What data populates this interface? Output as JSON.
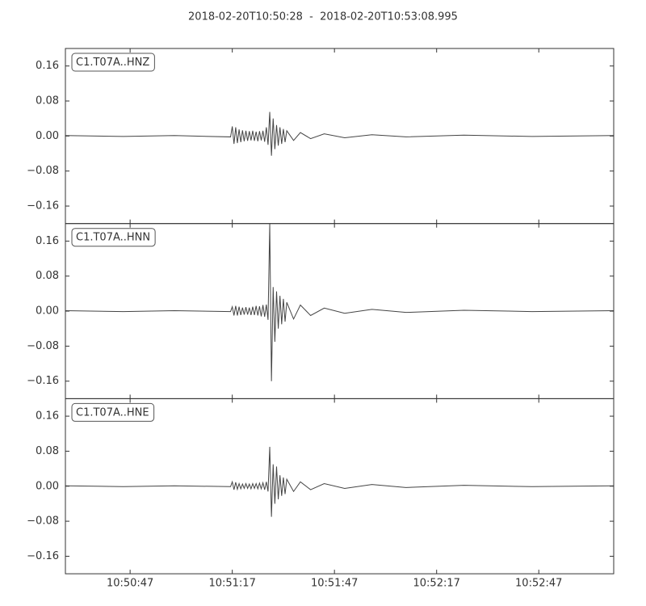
{
  "title": "2018-02-20T10:50:28  -  2018-02-20T10:53:08.995",
  "chart_data": [
    {
      "type": "line",
      "label": "C1.T07A..HNZ",
      "color": "#444444",
      "xlim": [
        "10:50:28",
        "10:53:08.995"
      ],
      "xticks": [
        {
          "value": "10:50:47",
          "label": "10:50:47"
        },
        {
          "value": "10:51:17",
          "label": "10:51:17"
        },
        {
          "value": "10:51:47",
          "label": "10:51:47"
        },
        {
          "value": "10:52:17",
          "label": "10:52:17"
        },
        {
          "value": "10:52:47",
          "label": "10:52:47"
        }
      ],
      "ylim": [
        -0.2,
        0.2
      ],
      "yticks": [
        {
          "value": 0.16,
          "label": "0.16"
        },
        {
          "value": 0.08,
          "label": "0.08"
        },
        {
          "value": 0,
          "label": "0.00"
        },
        {
          "value": -0.08,
          "label": "−0.08"
        },
        {
          "value": -0.16,
          "label": "−0.16"
        }
      ],
      "x": [
        "10:50:28",
        "10:50:45",
        "10:51:00",
        "10:51:16.5",
        "10:51:17",
        "10:51:17.5",
        "10:51:18",
        "10:51:18.5",
        "10:51:19",
        "10:51:19.5",
        "10:51:20",
        "10:51:20.5",
        "10:51:21",
        "10:51:21.5",
        "10:51:22",
        "10:51:22.5",
        "10:51:23",
        "10:51:23.5",
        "10:51:24",
        "10:51:24.5",
        "10:51:25",
        "10:51:25.5",
        "10:51:26",
        "10:51:26.5",
        "10:51:27",
        "10:51:27.5",
        "10:51:28",
        "10:51:28.5",
        "10:51:29",
        "10:51:29.5",
        "10:51:30",
        "10:51:30.5",
        "10:51:31",
        "10:51:31.5",
        "10:51:32",
        "10:51:32.5",
        "10:51:33",
        "10:51:35",
        "10:51:37",
        "10:51:40",
        "10:51:44",
        "10:51:50",
        "10:51:58",
        "10:52:08",
        "10:52:25",
        "10:52:45",
        "10:53:08.995"
      ],
      "values": [
        0.001,
        -0.001,
        0.001,
        -0.002,
        0.022,
        -0.018,
        0.02,
        -0.016,
        0.015,
        -0.014,
        0.013,
        -0.012,
        0.012,
        -0.011,
        0.011,
        -0.01,
        0.012,
        -0.011,
        0.01,
        -0.012,
        0.011,
        -0.01,
        0.012,
        -0.013,
        0.02,
        -0.02,
        0.055,
        -0.045,
        0.04,
        -0.03,
        0.025,
        -0.022,
        0.02,
        -0.018,
        0.016,
        -0.014,
        0.012,
        -0.01,
        0.008,
        -0.006,
        0.005,
        -0.004,
        0.003,
        -0.002,
        0.002,
        -0.001,
        0.001
      ]
    },
    {
      "type": "line",
      "label": "C1.T07A..HNN",
      "color": "#444444",
      "xlim": [
        "10:50:28",
        "10:53:08.995"
      ],
      "xticks": [
        {
          "value": "10:50:47",
          "label": "10:50:47"
        },
        {
          "value": "10:51:17",
          "label": "10:51:17"
        },
        {
          "value": "10:51:47",
          "label": "10:51:47"
        },
        {
          "value": "10:52:17",
          "label": "10:52:17"
        },
        {
          "value": "10:52:47",
          "label": "10:52:47"
        }
      ],
      "ylim": [
        -0.2,
        0.2
      ],
      "yticks": [
        {
          "value": 0.16,
          "label": "0.16"
        },
        {
          "value": 0.08,
          "label": "0.08"
        },
        {
          "value": 0,
          "label": "0.00"
        },
        {
          "value": -0.08,
          "label": "−0.08"
        },
        {
          "value": -0.16,
          "label": "−0.16"
        }
      ],
      "x": [
        "10:50:28",
        "10:50:45",
        "10:51:00",
        "10:51:16.5",
        "10:51:17",
        "10:51:17.5",
        "10:51:18",
        "10:51:18.5",
        "10:51:19",
        "10:51:19.5",
        "10:51:20",
        "10:51:20.5",
        "10:51:21",
        "10:51:21.5",
        "10:51:22",
        "10:51:22.5",
        "10:51:23",
        "10:51:23.5",
        "10:51:24",
        "10:51:24.5",
        "10:51:25",
        "10:51:25.5",
        "10:51:26",
        "10:51:26.5",
        "10:51:27",
        "10:51:27.5",
        "10:51:28",
        "10:51:28.5",
        "10:51:29",
        "10:51:29.5",
        "10:51:30",
        "10:51:30.5",
        "10:51:31",
        "10:51:31.5",
        "10:51:32",
        "10:51:32.5",
        "10:51:33",
        "10:51:35",
        "10:51:37",
        "10:51:40",
        "10:51:44",
        "10:51:50",
        "10:51:58",
        "10:52:08",
        "10:52:25",
        "10:52:45",
        "10:53:08.995"
      ],
      "values": [
        0.001,
        -0.001,
        0.001,
        -0.001,
        0.01,
        -0.01,
        0.012,
        -0.01,
        0.01,
        -0.009,
        0.008,
        -0.008,
        0.009,
        -0.008,
        0.008,
        -0.009,
        0.01,
        -0.009,
        0.012,
        -0.01,
        0.011,
        -0.012,
        0.014,
        -0.013,
        0.015,
        -0.02,
        0.2,
        -0.16,
        0.055,
        -0.07,
        0.045,
        -0.04,
        0.035,
        -0.03,
        0.028,
        -0.024,
        0.02,
        -0.018,
        0.014,
        -0.01,
        0.007,
        -0.005,
        0.004,
        -0.003,
        0.002,
        -0.001,
        0.001
      ]
    },
    {
      "type": "line",
      "label": "C1.T07A..HNE",
      "color": "#444444",
      "xlim": [
        "10:50:28",
        "10:53:08.995"
      ],
      "xticks": [
        {
          "value": "10:50:47",
          "label": "10:50:47"
        },
        {
          "value": "10:51:17",
          "label": "10:51:17"
        },
        {
          "value": "10:51:47",
          "label": "10:51:47"
        },
        {
          "value": "10:52:17",
          "label": "10:52:17"
        },
        {
          "value": "10:52:47",
          "label": "10:52:47"
        }
      ],
      "ylim": [
        -0.2,
        0.2
      ],
      "yticks": [
        {
          "value": 0.16,
          "label": "0.16"
        },
        {
          "value": 0.08,
          "label": "0.08"
        },
        {
          "value": 0,
          "label": "0.00"
        },
        {
          "value": -0.08,
          "label": "−0.08"
        },
        {
          "value": -0.16,
          "label": "−0.16"
        }
      ],
      "x": [
        "10:50:28",
        "10:50:45",
        "10:51:00",
        "10:51:16.5",
        "10:51:17",
        "10:51:17.5",
        "10:51:18",
        "10:51:18.5",
        "10:51:19",
        "10:51:19.5",
        "10:51:20",
        "10:51:20.5",
        "10:51:21",
        "10:51:21.5",
        "10:51:22",
        "10:51:22.5",
        "10:51:23",
        "10:51:23.5",
        "10:51:24",
        "10:51:24.5",
        "10:51:25",
        "10:51:25.5",
        "10:51:26",
        "10:51:26.5",
        "10:51:27",
        "10:51:27.5",
        "10:51:28",
        "10:51:28.5",
        "10:51:29",
        "10:51:29.5",
        "10:51:30",
        "10:51:30.5",
        "10:51:31",
        "10:51:31.5",
        "10:51:32",
        "10:51:32.5",
        "10:51:33",
        "10:51:35",
        "10:51:37",
        "10:51:40",
        "10:51:44",
        "10:51:50",
        "10:51:58",
        "10:52:08",
        "10:52:25",
        "10:52:45",
        "10:53:08.995"
      ],
      "values": [
        0.001,
        -0.001,
        0.001,
        -0.001,
        0.01,
        -0.008,
        0.009,
        -0.007,
        0.006,
        -0.006,
        0.005,
        -0.005,
        0.006,
        -0.005,
        0.005,
        -0.006,
        0.006,
        -0.005,
        0.006,
        -0.006,
        0.007,
        -0.006,
        0.008,
        -0.008,
        0.01,
        -0.012,
        0.09,
        -0.07,
        0.05,
        -0.04,
        0.045,
        -0.03,
        0.025,
        -0.022,
        0.02,
        -0.018,
        0.016,
        -0.012,
        0.01,
        -0.008,
        0.006,
        -0.005,
        0.004,
        -0.003,
        0.002,
        -0.001,
        0.001
      ]
    }
  ]
}
